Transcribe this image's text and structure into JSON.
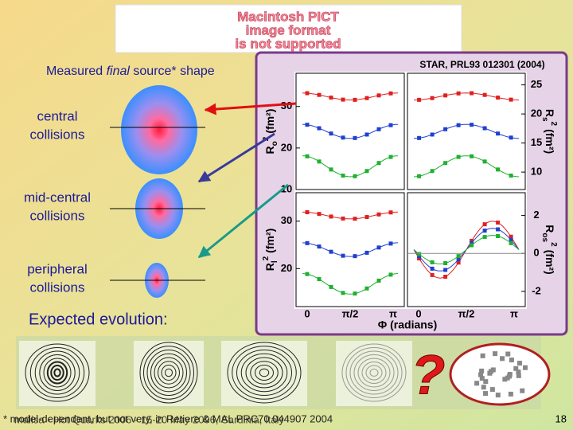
{
  "placeholder": {
    "lines": [
      "Macintosh PICT",
      "image format",
      "is not supported"
    ]
  },
  "source_shape": {
    "before": "Measured ",
    "italic": "final",
    "after": " source* shape"
  },
  "collisions": [
    [
      "central",
      "collisions"
    ],
    [
      "mid-central",
      "collisions"
    ],
    [
      "peripheral",
      "collisions"
    ]
  ],
  "expected": "Expected evolution:",
  "figure": {
    "reference": "STAR, PRL93 012301 (2004)",
    "panels": [
      {
        "symbol": "R",
        "sub": "o",
        "sup": "2",
        "unit": "(fm²)",
        "side": "left",
        "row": 0,
        "ylim": [
          10,
          38
        ],
        "yticks": [
          30,
          20,
          10
        ]
      },
      {
        "symbol": "R",
        "sub": "s",
        "sup": "2",
        "unit": "(fm²)",
        "side": "right",
        "row": 0,
        "ylim": [
          7,
          27
        ],
        "yticks": [
          25,
          20,
          15,
          10
        ]
      },
      {
        "symbol": "R",
        "sub": "l",
        "sup": "2",
        "unit": "(fm²)",
        "side": "left",
        "row": 1,
        "ylim": [
          12,
          36
        ],
        "yticks": [
          30,
          20
        ]
      },
      {
        "symbol": "R",
        "sub": "os",
        "sup": "2",
        "unit": "(fm²)",
        "side": "right",
        "row": 1,
        "ylim": [
          -2.8,
          3.2
        ],
        "yticks": [
          2,
          0,
          -2
        ]
      }
    ],
    "xlabel": "Φ (radians)",
    "xticks": [
      "0",
      "π/2",
      "π"
    ]
  },
  "question": "?",
  "footer": {
    "note": "* model-dependent, but not very, in Retiere & MAL PRC70 044907 2004",
    "venue": "malisa - Hot Quarks 2006 - 15-20 May 2006, Sardinia, Italy",
    "page": "18"
  }
}
